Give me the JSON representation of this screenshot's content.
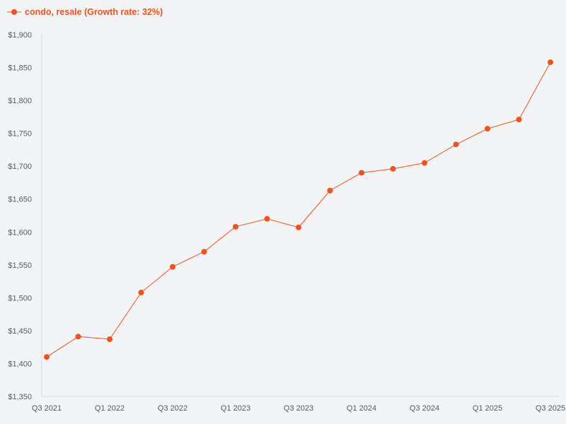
{
  "legend": {
    "label": "condo, resale (Growth rate: 32%)",
    "color": "#f4511e"
  },
  "chart_data": {
    "type": "line",
    "title": "",
    "xlabel": "",
    "ylabel": "",
    "ylim": [
      1350,
      1900
    ],
    "grid": false,
    "legend_position": "top-left",
    "y_ticks": [
      1350,
      1400,
      1450,
      1500,
      1550,
      1600,
      1650,
      1700,
      1750,
      1800,
      1850,
      1900
    ],
    "y_tick_labels": [
      "$1,350",
      "$1,400",
      "$1,450",
      "$1,500",
      "$1,550",
      "$1,600",
      "$1,650",
      "$1,700",
      "$1,750",
      "$1,800",
      "$1,850",
      "$1,900"
    ],
    "categories": [
      "Q3 2021",
      "Q4 2021",
      "Q1 2022",
      "Q2 2022",
      "Q3 2022",
      "Q4 2022",
      "Q1 2023",
      "Q2 2023",
      "Q3 2023",
      "Q4 2023",
      "Q1 2024",
      "Q2 2024",
      "Q3 2024",
      "Q4 2024",
      "Q1 2025",
      "Q2 2025",
      "Q3 2025"
    ],
    "x_tick_labels": [
      "Q3 2021",
      "Q1 2022",
      "Q3 2022",
      "Q1 2023",
      "Q3 2023",
      "Q1 2024",
      "Q3 2024",
      "Q1 2025",
      "Q3 2025"
    ],
    "series": [
      {
        "name": "condo, resale (Growth rate: 32%)",
        "color": "#f4511e",
        "values": [
          1410,
          1441,
          1437,
          1508,
          1547,
          1570,
          1608,
          1620,
          1607,
          1663,
          1690,
          1696,
          1705,
          1733,
          1757,
          1771,
          1858
        ]
      }
    ]
  }
}
